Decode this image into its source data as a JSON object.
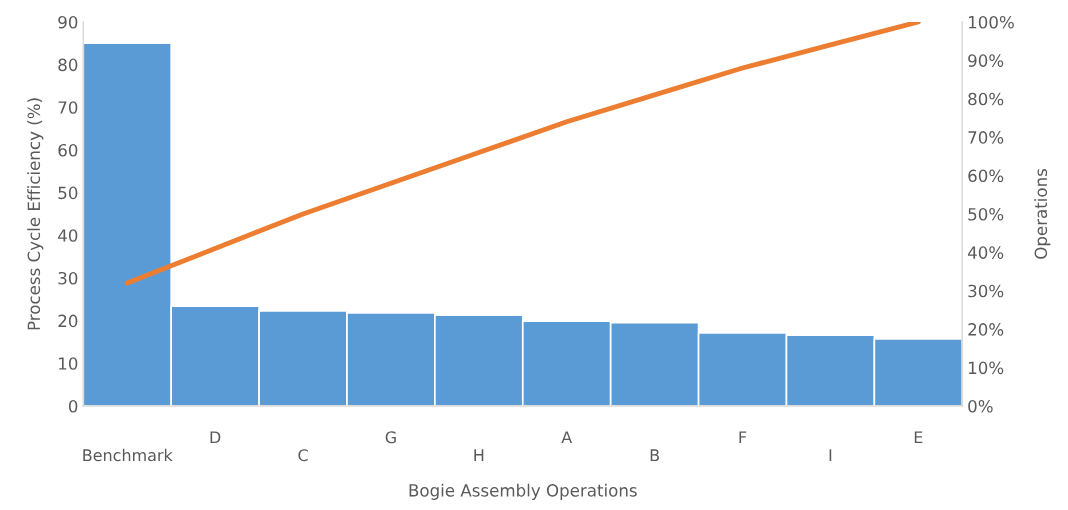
{
  "chart_data": {
    "type": "bar",
    "categories": [
      "Benchmark",
      "D",
      "C",
      "G",
      "H",
      "A",
      "B",
      "F",
      "I",
      "E"
    ],
    "xlabel": "Bogie Assembly Operations",
    "ylabel": "Process Cycle Efficiency (%)",
    "y2label": "Operations",
    "series": [
      {
        "color": "#5b9bd5",
        "values": [
          85,
          23.4,
          22.3,
          21.8,
          21.3,
          19.9,
          19.5,
          17.1,
          16.6,
          15.7
        ]
      },
      {
        "type": "line",
        "axis": "y2",
        "color": "#ed7d31",
        "values": [
          32,
          41,
          50,
          58,
          66,
          74,
          81,
          88,
          94,
          100
        ]
      }
    ],
    "ylim": [
      0,
      90
    ],
    "yticks": [
      0,
      10,
      20,
      30,
      40,
      50,
      60,
      70,
      80,
      90
    ],
    "y2lim": [
      0,
      100
    ],
    "y2ticks": [
      {
        "value": 0,
        "label": "0%"
      },
      {
        "value": 10,
        "label": "10%"
      },
      {
        "value": 20,
        "label": "20%"
      },
      {
        "value": 30,
        "label": "30%"
      },
      {
        "value": 40,
        "label": "40%"
      },
      {
        "value": 50,
        "label": "50%"
      },
      {
        "value": 60,
        "label": "60%"
      },
      {
        "value": 70,
        "label": "70%"
      },
      {
        "value": 80,
        "label": "80%"
      },
      {
        "value": 90,
        "label": "90%"
      },
      {
        "value": 100,
        "label": "100%"
      }
    ],
    "grid": false,
    "legend": false,
    "marker": "none",
    "line_style": "solid"
  }
}
